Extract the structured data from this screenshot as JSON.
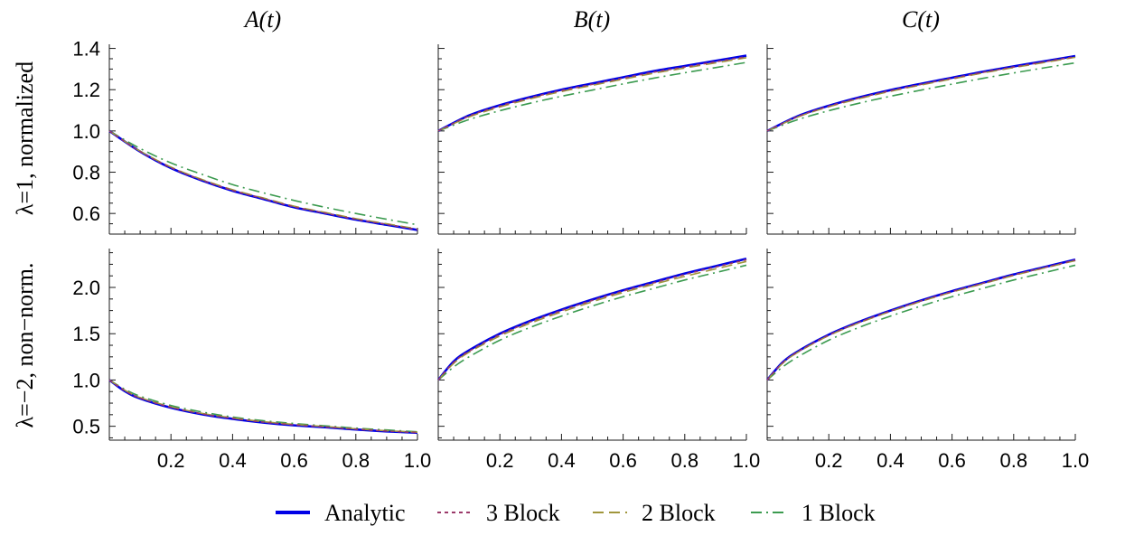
{
  "chart_data": {
    "type": "line",
    "columns": [
      "A(t)",
      "B(t)",
      "C(t)"
    ],
    "rows": [
      "λ=1, normalized",
      "λ=−2, non−norm."
    ],
    "x_ticks": [
      "0.2",
      "0.4",
      "0.6",
      "0.8",
      "1.0"
    ],
    "xlim": [
      0,
      1
    ],
    "legend": [
      {
        "name": "Analytic",
        "color": "#0000e6",
        "dash": "solid"
      },
      {
        "name": "3 Block",
        "color": "#9b3a6a",
        "dash": "short-dash"
      },
      {
        "name": "2 Block",
        "color": "#a0963c",
        "dash": "long-dash"
      },
      {
        "name": "1 Block",
        "color": "#3c9b50",
        "dash": "dash-dot"
      }
    ],
    "panels": [
      {
        "row": 0,
        "col": 0,
        "ylim": [
          0.5,
          1.42
        ],
        "y_ticks": [
          "0.6",
          "0.8",
          "1.0",
          "1.2",
          "1.4"
        ],
        "series": [
          {
            "name": "Analytic",
            "x": [
              0,
              0.1,
              0.2,
              0.3,
              0.4,
              0.5,
              0.6,
              0.7,
              0.8,
              0.9,
              1.0
            ],
            "y": [
              1.0,
              0.9,
              0.82,
              0.76,
              0.71,
              0.67,
              0.63,
              0.6,
              0.57,
              0.545,
              0.52
            ]
          },
          {
            "name": "3 Block",
            "x": [
              0,
              0.1,
              0.2,
              0.3,
              0.4,
              0.5,
              0.6,
              0.7,
              0.8,
              0.9,
              1.0
            ],
            "y": [
              1.0,
              0.9,
              0.822,
              0.762,
              0.712,
              0.672,
              0.632,
              0.602,
              0.572,
              0.547,
              0.522
            ]
          },
          {
            "name": "2 Block",
            "x": [
              0,
              0.1,
              0.2,
              0.3,
              0.4,
              0.5,
              0.6,
              0.7,
              0.8,
              0.9,
              1.0
            ],
            "y": [
              1.0,
              0.902,
              0.825,
              0.765,
              0.715,
              0.675,
              0.635,
              0.605,
              0.575,
              0.55,
              0.525
            ]
          },
          {
            "name": "1 Block",
            "x": [
              0,
              0.1,
              0.2,
              0.3,
              0.4,
              0.5,
              0.6,
              0.7,
              0.8,
              0.9,
              1.0
            ],
            "y": [
              1.0,
              0.915,
              0.845,
              0.79,
              0.74,
              0.7,
              0.663,
              0.63,
              0.6,
              0.572,
              0.545
            ]
          }
        ]
      },
      {
        "row": 0,
        "col": 1,
        "ylim": [
          0.5,
          1.42
        ],
        "y_ticks": [
          "0.6",
          "0.8",
          "1.0",
          "1.2",
          "1.4"
        ],
        "series": [
          {
            "name": "Analytic",
            "x": [
              0,
              0.1,
              0.2,
              0.3,
              0.4,
              0.5,
              0.6,
              0.7,
              0.8,
              0.9,
              1.0
            ],
            "y": [
              1.0,
              1.075,
              1.125,
              1.165,
              1.2,
              1.23,
              1.26,
              1.29,
              1.315,
              1.34,
              1.365
            ]
          },
          {
            "name": "3 Block",
            "x": [
              0,
              0.1,
              0.2,
              0.3,
              0.4,
              0.5,
              0.6,
              0.7,
              0.8,
              0.9,
              1.0
            ],
            "y": [
              1.0,
              1.072,
              1.121,
              1.161,
              1.196,
              1.226,
              1.256,
              1.285,
              1.31,
              1.335,
              1.36
            ]
          },
          {
            "name": "2 Block",
            "x": [
              0,
              0.1,
              0.2,
              0.3,
              0.4,
              0.5,
              0.6,
              0.7,
              0.8,
              0.9,
              1.0
            ],
            "y": [
              1.0,
              1.068,
              1.116,
              1.156,
              1.191,
              1.221,
              1.251,
              1.28,
              1.305,
              1.33,
              1.355
            ]
          },
          {
            "name": "1 Block",
            "x": [
              0,
              0.1,
              0.2,
              0.3,
              0.4,
              0.5,
              0.6,
              0.7,
              0.8,
              0.9,
              1.0
            ],
            "y": [
              1.0,
              1.055,
              1.098,
              1.135,
              1.168,
              1.198,
              1.228,
              1.256,
              1.282,
              1.307,
              1.332
            ]
          }
        ]
      },
      {
        "row": 0,
        "col": 2,
        "ylim": [
          0.5,
          1.42
        ],
        "y_ticks": [
          "0.6",
          "0.8",
          "1.0",
          "1.2",
          "1.4"
        ],
        "series": [
          {
            "name": "Analytic",
            "x": [
              0,
              0.1,
              0.2,
              0.3,
              0.4,
              0.5,
              0.6,
              0.7,
              0.8,
              0.9,
              1.0
            ],
            "y": [
              1.0,
              1.072,
              1.122,
              1.163,
              1.198,
              1.229,
              1.258,
              1.287,
              1.313,
              1.338,
              1.363
            ]
          },
          {
            "name": "3 Block",
            "x": [
              0,
              0.1,
              0.2,
              0.3,
              0.4,
              0.5,
              0.6,
              0.7,
              0.8,
              0.9,
              1.0
            ],
            "y": [
              1.0,
              1.07,
              1.12,
              1.16,
              1.195,
              1.226,
              1.255,
              1.284,
              1.31,
              1.335,
              1.36
            ]
          },
          {
            "name": "2 Block",
            "x": [
              0,
              0.1,
              0.2,
              0.3,
              0.4,
              0.5,
              0.6,
              0.7,
              0.8,
              0.9,
              1.0
            ],
            "y": [
              1.0,
              1.068,
              1.117,
              1.157,
              1.192,
              1.223,
              1.252,
              1.281,
              1.307,
              1.332,
              1.357
            ]
          },
          {
            "name": "1 Block",
            "x": [
              0,
              0.1,
              0.2,
              0.3,
              0.4,
              0.5,
              0.6,
              0.7,
              0.8,
              0.9,
              1.0
            ],
            "y": [
              1.0,
              1.055,
              1.098,
              1.135,
              1.168,
              1.198,
              1.227,
              1.255,
              1.281,
              1.306,
              1.33
            ]
          }
        ]
      },
      {
        "row": 1,
        "col": 0,
        "ylim": [
          0.35,
          2.42
        ],
        "y_ticks": [
          "0.5",
          "1.0",
          "1.5",
          "2.0"
        ],
        "series": [
          {
            "name": "Analytic",
            "x": [
              0,
              0.05,
              0.1,
              0.2,
              0.3,
              0.4,
              0.5,
              0.6,
              0.7,
              0.8,
              0.9,
              1.0
            ],
            "y": [
              1.0,
              0.88,
              0.8,
              0.7,
              0.63,
              0.58,
              0.54,
              0.51,
              0.49,
              0.465,
              0.445,
              0.43
            ]
          },
          {
            "name": "3 Block",
            "x": [
              0,
              0.05,
              0.1,
              0.2,
              0.3,
              0.4,
              0.5,
              0.6,
              0.7,
              0.8,
              0.9,
              1.0
            ],
            "y": [
              1.0,
              0.885,
              0.805,
              0.705,
              0.635,
              0.585,
              0.545,
              0.515,
              0.493,
              0.468,
              0.448,
              0.432
            ]
          },
          {
            "name": "2 Block",
            "x": [
              0,
              0.05,
              0.1,
              0.2,
              0.3,
              0.4,
              0.5,
              0.6,
              0.7,
              0.8,
              0.9,
              1.0
            ],
            "y": [
              1.0,
              0.89,
              0.81,
              0.71,
              0.64,
              0.59,
              0.55,
              0.52,
              0.497,
              0.472,
              0.452,
              0.436
            ]
          },
          {
            "name": "1 Block",
            "x": [
              0,
              0.05,
              0.1,
              0.2,
              0.3,
              0.4,
              0.5,
              0.6,
              0.7,
              0.8,
              0.9,
              1.0
            ],
            "y": [
              1.0,
              0.9,
              0.825,
              0.725,
              0.655,
              0.6,
              0.56,
              0.53,
              0.505,
              0.48,
              0.46,
              0.44
            ]
          }
        ]
      },
      {
        "row": 1,
        "col": 1,
        "ylim": [
          0.35,
          2.42
        ],
        "y_ticks": [
          "0.5",
          "1.0",
          "1.5",
          "2.0"
        ],
        "series": [
          {
            "name": "Analytic",
            "x": [
              0,
              0.05,
              0.1,
              0.2,
              0.3,
              0.4,
              0.5,
              0.6,
              0.7,
              0.8,
              0.9,
              1.0
            ],
            "y": [
              1.0,
              1.2,
              1.32,
              1.5,
              1.64,
              1.76,
              1.87,
              1.97,
              2.06,
              2.15,
              2.23,
              2.31
            ]
          },
          {
            "name": "3 Block",
            "x": [
              0,
              0.05,
              0.1,
              0.2,
              0.3,
              0.4,
              0.5,
              0.6,
              0.7,
              0.8,
              0.9,
              1.0
            ],
            "y": [
              1.0,
              1.19,
              1.31,
              1.49,
              1.63,
              1.75,
              1.86,
              1.96,
              2.05,
              2.14,
              2.22,
              2.3
            ]
          },
          {
            "name": "2 Block",
            "x": [
              0,
              0.05,
              0.1,
              0.2,
              0.3,
              0.4,
              0.5,
              0.6,
              0.7,
              0.8,
              0.9,
              1.0
            ],
            "y": [
              1.0,
              1.18,
              1.3,
              1.475,
              1.615,
              1.735,
              1.845,
              1.945,
              2.035,
              2.12,
              2.2,
              2.28
            ]
          },
          {
            "name": "1 Block",
            "x": [
              0,
              0.05,
              0.1,
              0.2,
              0.3,
              0.4,
              0.5,
              0.6,
              0.7,
              0.8,
              0.9,
              1.0
            ],
            "y": [
              1.0,
              1.14,
              1.25,
              1.43,
              1.57,
              1.69,
              1.8,
              1.9,
              1.99,
              2.08,
              2.16,
              2.24
            ]
          }
        ]
      },
      {
        "row": 1,
        "col": 2,
        "ylim": [
          0.35,
          2.42
        ],
        "y_ticks": [
          "0.5",
          "1.0",
          "1.5",
          "2.0"
        ],
        "series": [
          {
            "name": "Analytic",
            "x": [
              0,
              0.05,
              0.1,
              0.2,
              0.3,
              0.4,
              0.5,
              0.6,
              0.7,
              0.8,
              0.9,
              1.0
            ],
            "y": [
              1.0,
              1.19,
              1.31,
              1.49,
              1.63,
              1.75,
              1.86,
              1.96,
              2.05,
              2.14,
              2.22,
              2.3
            ]
          },
          {
            "name": "3 Block",
            "x": [
              0,
              0.05,
              0.1,
              0.2,
              0.3,
              0.4,
              0.5,
              0.6,
              0.7,
              0.8,
              0.9,
              1.0
            ],
            "y": [
              1.0,
              1.185,
              1.305,
              1.485,
              1.625,
              1.745,
              1.855,
              1.955,
              2.045,
              2.135,
              2.215,
              2.295
            ]
          },
          {
            "name": "2 Block",
            "x": [
              0,
              0.05,
              0.1,
              0.2,
              0.3,
              0.4,
              0.5,
              0.6,
              0.7,
              0.8,
              0.9,
              1.0
            ],
            "y": [
              1.0,
              1.18,
              1.3,
              1.48,
              1.62,
              1.74,
              1.85,
              1.95,
              2.04,
              2.13,
              2.21,
              2.29
            ]
          },
          {
            "name": "1 Block",
            "x": [
              0,
              0.05,
              0.1,
              0.2,
              0.3,
              0.4,
              0.5,
              0.6,
              0.7,
              0.8,
              0.9,
              1.0
            ],
            "y": [
              1.0,
              1.14,
              1.25,
              1.43,
              1.57,
              1.69,
              1.8,
              1.9,
              1.99,
              2.08,
              2.16,
              2.24
            ]
          }
        ]
      }
    ]
  }
}
